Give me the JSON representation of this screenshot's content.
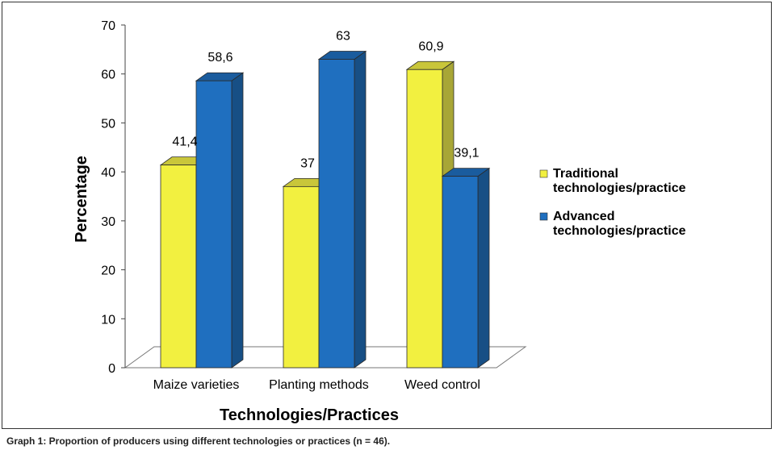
{
  "chart_data": {
    "type": "bar",
    "title": "",
    "xlabel": "Technologies/Practices",
    "ylabel": "Percentage",
    "categories": [
      "Maize varieties",
      "Planting methods",
      "Weed control"
    ],
    "series": [
      {
        "name": "Traditional technologies/practice",
        "legend_lines": [
          "Traditional",
          "technologies/practice"
        ],
        "values": [
          41.4,
          37,
          60.9
        ],
        "labels": [
          "41,4",
          "37",
          "60,9"
        ],
        "color": "#f2f040",
        "side_color": "#a8a636",
        "top_color": "#c9c63a"
      },
      {
        "name": "Advanced technologies/practice",
        "legend_lines": [
          "Advanced",
          "technologies/practice"
        ],
        "values": [
          58.6,
          63,
          39.1
        ],
        "labels": [
          "58,6",
          "63",
          "39,1"
        ],
        "color": "#1f6fbf",
        "side_color": "#174f85",
        "top_color": "#1a5c9e"
      }
    ],
    "ylim": [
      0,
      70
    ],
    "yticks": [
      "0",
      "10",
      "20",
      "30",
      "40",
      "50",
      "60",
      "70"
    ],
    "grid": false,
    "legend_position": "right",
    "style": "3d-bar"
  },
  "caption": "Graph 1: Proportion of producers using different technologies or practices (n = 46)."
}
